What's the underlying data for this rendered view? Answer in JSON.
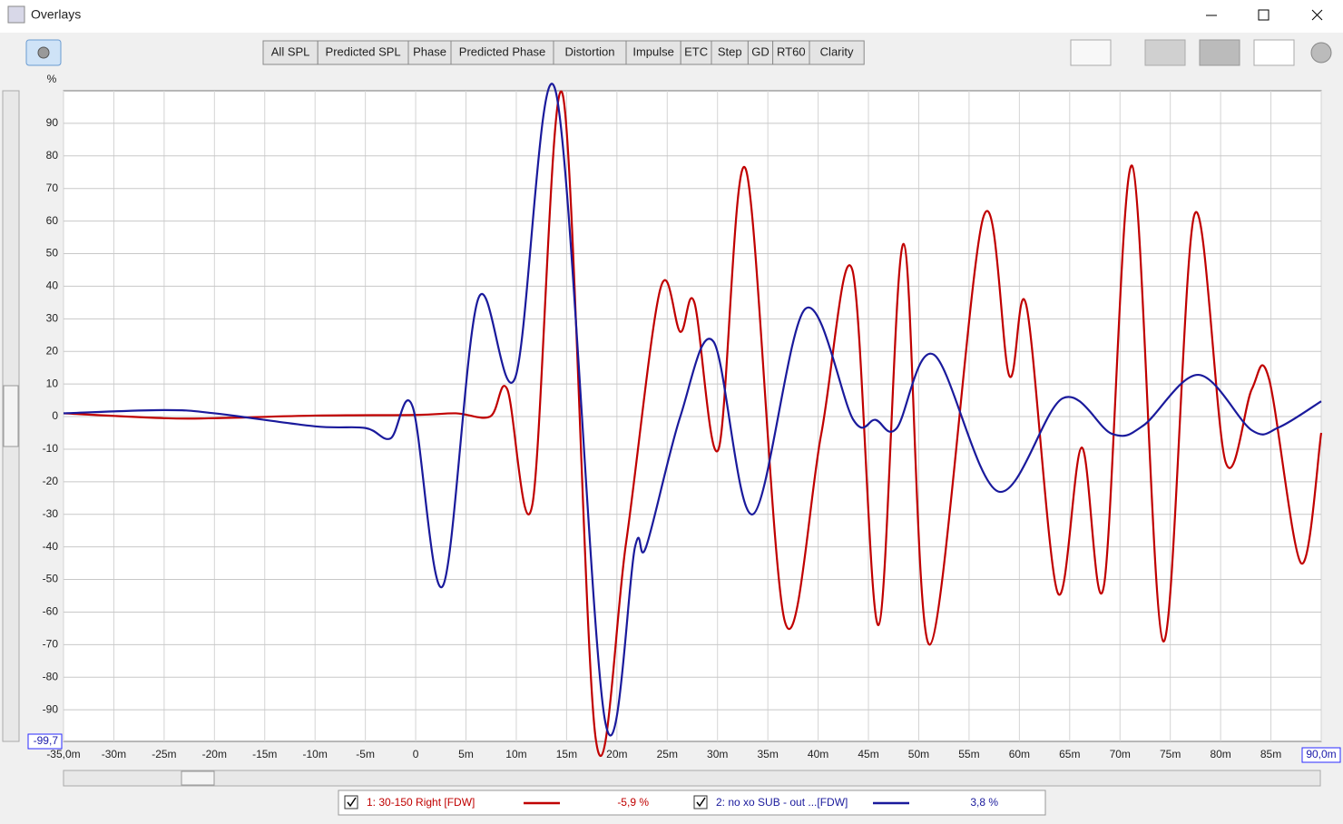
{
  "window": {
    "title": "Overlays"
  },
  "tabs": [
    "All SPL",
    "Predicted SPL",
    "Phase",
    "Predicted Phase",
    "Distortion",
    "Impulse",
    "ETC",
    "Step",
    "GD",
    "RT60",
    "Clarity"
  ],
  "active_tab": "Impulse",
  "chart_data": {
    "type": "line",
    "ylabel": "%",
    "xlim": [
      -35,
      90
    ],
    "ylim": [
      -99.7,
      100
    ],
    "xticks": [
      {
        "value": -35,
        "label": "-35,0m"
      },
      {
        "value": -30,
        "label": "-30m"
      },
      {
        "value": -25,
        "label": "-25m"
      },
      {
        "value": -20,
        "label": "-20m"
      },
      {
        "value": -15,
        "label": "-15m"
      },
      {
        "value": -10,
        "label": "-10m"
      },
      {
        "value": -5,
        "label": "-5m"
      },
      0,
      {
        "value": 5,
        "label": "5m"
      },
      {
        "value": 10,
        "label": "10m"
      },
      {
        "value": 15,
        "label": "15m"
      },
      {
        "value": 20,
        "label": "20m"
      },
      {
        "value": 25,
        "label": "25m"
      },
      {
        "value": 30,
        "label": "30m"
      },
      {
        "value": 35,
        "label": "35m"
      },
      {
        "value": 40,
        "label": "40m"
      },
      {
        "value": 45,
        "label": "45m"
      },
      {
        "value": 50,
        "label": "50m"
      },
      {
        "value": 55,
        "label": "55m"
      },
      {
        "value": 60,
        "label": "60m"
      },
      {
        "value": 65,
        "label": "65m"
      },
      {
        "value": 70,
        "label": "70m"
      },
      {
        "value": 75,
        "label": "75m"
      },
      {
        "value": 80,
        "label": "80m"
      },
      {
        "value": 85,
        "label": "85m"
      },
      {
        "value": 90,
        "label": "90,0m"
      }
    ],
    "yticks": [
      {
        "value": -99.7,
        "label": "-99,7"
      },
      -90,
      -80,
      -70,
      -60,
      -50,
      -40,
      -30,
      -20,
      -10,
      0,
      10,
      20,
      30,
      40,
      50,
      60,
      70,
      80,
      90
    ],
    "grid": true,
    "series": [
      {
        "name": "1: 30-150 Right [FDW]",
        "color": "#c00000",
        "readout": "-5,9 %",
        "x": [
          -35,
          -25,
          -20,
          -10,
          0,
          4,
          7.4,
          9.1,
          11.6,
          14.6,
          17.9,
          20.9,
          24.3,
          26.3,
          27.7,
          30.1,
          32.8,
          36.7,
          40.3,
          43.4,
          46.0,
          48.5,
          51.1,
          56.4,
          59.0,
          60.7,
          63.8,
          66.2,
          68.4,
          71.2,
          74.3,
          77.4,
          80.5,
          83.1,
          84.8,
          88.0,
          90
        ],
        "values": [
          1,
          -0.5,
          -0.5,
          0.3,
          0.5,
          1,
          0,
          8.4,
          -27,
          99,
          -99,
          -39,
          39,
          26,
          35,
          -10,
          76,
          -63,
          -5.5,
          45,
          -64,
          53,
          -70,
          61,
          12.5,
          34,
          -54,
          -9.5,
          -52,
          77,
          -69,
          62,
          -14,
          8.4,
          11.7,
          -45,
          -5
        ]
      },
      {
        "name": "2: no xo SUB - out ...[FDW]",
        "color": "#1a1a9c",
        "readout": "3,8 %",
        "x": [
          -35,
          -25,
          -20,
          -10,
          -5,
          -2.5,
          -0.3,
          2.7,
          6.2,
          9.9,
          13.9,
          18.8,
          21.8,
          22.9,
          26.3,
          29.6,
          33.5,
          38.7,
          43.5,
          45.7,
          47.8,
          51.5,
          57.9,
          64.3,
          69.2,
          72.3,
          77.8,
          83.1,
          85.8,
          90
        ],
        "values": [
          1,
          2,
          1,
          -3,
          -3.5,
          -6.7,
          3,
          -52,
          36,
          12,
          100,
          -93,
          -40,
          -40,
          0,
          23,
          -30,
          33,
          -1,
          -1,
          -3.6,
          19,
          -23,
          5.6,
          -5.3,
          -2.8,
          12.8,
          -4.2,
          -3.3,
          4.7
        ]
      }
    ]
  }
}
